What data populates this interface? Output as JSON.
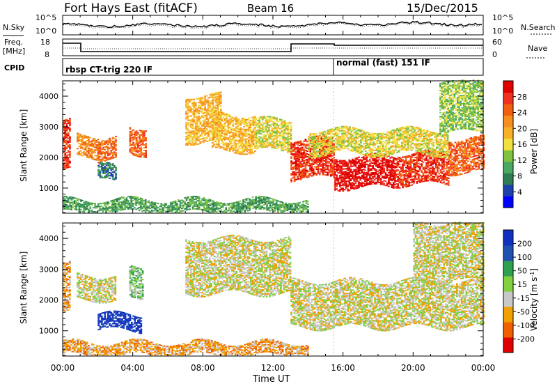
{
  "header": {
    "station": "Fort Hays East (fitACF)",
    "beam": "Beam 16",
    "date": "15/Dec/2015"
  },
  "left_labels": {
    "nsky": "N.Sky",
    "freq": "Freq.",
    "freq_unit": "[MHz]",
    "cpid": "CPID"
  },
  "right_labels": {
    "nsearch": "N.Search",
    "nave": "Nave"
  },
  "top_panel": {
    "left_ticks": [
      "10^5",
      "10^0"
    ],
    "right_ticks": [
      "10^5",
      "10^0"
    ]
  },
  "freq_panel": {
    "left_ticks": [
      "18",
      "8"
    ],
    "right_ticks": [
      "60",
      "0"
    ]
  },
  "cpid_panel": {
    "mode1": "rbsp CT-trig 220 IF",
    "mode2": "normal (fast) 151 IF"
  },
  "colors": {
    "power": [
      "#0000ff",
      "#1e3fae",
      "#2e7d52",
      "#4aa860",
      "#7fc241",
      "#f0e040",
      "#f9b028",
      "#f59020",
      "#f06010",
      "#f03020",
      "#e00000"
    ],
    "velocity": [
      "#e00000",
      "#f06000",
      "#f0a000",
      "#c8c8c8",
      "#80d040",
      "#30a050",
      "#2050b0",
      "#1030c0"
    ]
  },
  "chart_data": [
    {
      "type": "heatmap",
      "title": "",
      "xlabel": "Time UT",
      "ylabel": "Slant Range [km]",
      "colorbar_label": "Power [dB]",
      "colorbar_ticks": [
        "28",
        "24",
        "20",
        "16",
        "12",
        "8",
        "4"
      ],
      "x_ticks": [
        "00:00",
        "04:00",
        "08:00",
        "12:00",
        "16:00",
        "20:00",
        "00:00"
      ],
      "y_ticks": [
        "4000",
        "3000",
        "2000",
        "1000"
      ],
      "xlim_hours": [
        0,
        24
      ],
      "ylim_km": [
        180,
        4500
      ],
      "bands": [
        {
          "t0": 0.0,
          "t1": 0.4,
          "r_lo": 1600,
          "r_hi": 3200,
          "level": 9
        },
        {
          "t0": 0.8,
          "t1": 2.0,
          "r_lo": 2000,
          "r_hi": 2700,
          "level": 7
        },
        {
          "t0": 2.0,
          "t1": 3.0,
          "r_lo": 1900,
          "r_hi": 2600,
          "level": 8
        },
        {
          "t0": 3.8,
          "t1": 4.7,
          "r_lo": 2100,
          "r_hi": 3000,
          "level": 8
        },
        {
          "t0": 2.0,
          "t1": 3.0,
          "r_lo": 1200,
          "r_hi": 1700,
          "level": 2
        },
        {
          "t0": 7.0,
          "t1": 9.0,
          "r_lo": 2500,
          "r_hi": 4000,
          "level": 6
        },
        {
          "t0": 8.5,
          "t1": 11.0,
          "r_lo": 2200,
          "r_hi": 3400,
          "level": 6
        },
        {
          "t0": 11.0,
          "t1": 13.0,
          "r_lo": 2200,
          "r_hi": 3200,
          "level": 5
        },
        {
          "t0": 13.0,
          "t1": 15.5,
          "r_lo": 1300,
          "r_hi": 2600,
          "level": 9
        },
        {
          "t0": 15.5,
          "t1": 19.0,
          "r_lo": 1000,
          "r_hi": 2000,
          "level": 10
        },
        {
          "t0": 19.0,
          "t1": 22.0,
          "r_lo": 1100,
          "r_hi": 2100,
          "level": 9
        },
        {
          "t0": 22.0,
          "t1": 24.0,
          "r_lo": 1500,
          "r_hi": 2600,
          "level": 8
        },
        {
          "t0": 14.0,
          "t1": 22.0,
          "r_lo": 2100,
          "r_hi": 2900,
          "level": 5
        },
        {
          "t0": 21.5,
          "t1": 24.0,
          "r_lo": 2800,
          "r_hi": 4500,
          "level": 4
        },
        {
          "t0": 0.0,
          "t1": 14.0,
          "r_lo": 180,
          "r_hi": 600,
          "level": 3
        }
      ]
    },
    {
      "type": "heatmap",
      "title": "",
      "xlabel": "Time UT",
      "ylabel": "Slant Range [km]",
      "colorbar_label": "Velocity [m s^-1]",
      "colorbar_ticks": [
        "200",
        "100",
        "50",
        "15",
        "-15",
        "-50",
        "-100",
        "-200"
      ],
      "x_ticks": [
        "00:00",
        "04:00",
        "08:00",
        "12:00",
        "16:00",
        "20:00",
        "00:00"
      ],
      "y_ticks": [
        "4000",
        "3000",
        "2000",
        "1000"
      ],
      "xlim_hours": [
        0,
        24
      ],
      "ylim_km": [
        180,
        4500
      ],
      "bands": [
        {
          "t0": 0.0,
          "t1": 0.4,
          "r_lo": 1600,
          "r_hi": 3200,
          "level": 2
        },
        {
          "t0": 0.8,
          "t1": 3.0,
          "r_lo": 2000,
          "r_hi": 2800,
          "level": 3
        },
        {
          "t0": 3.8,
          "t1": 4.6,
          "r_lo": 2000,
          "r_hi": 3000,
          "level": 4
        },
        {
          "t0": 2.0,
          "t1": 4.5,
          "r_lo": 1000,
          "r_hi": 1500,
          "level": 7
        },
        {
          "t0": 7.0,
          "t1": 13.0,
          "r_lo": 2200,
          "r_hi": 4000,
          "level": 3
        },
        {
          "t0": 13.0,
          "t1": 24.0,
          "r_lo": 1100,
          "r_hi": 2600,
          "level": 3
        },
        {
          "t0": 20.0,
          "t1": 24.0,
          "r_lo": 2600,
          "r_hi": 4500,
          "level": 3
        },
        {
          "t0": 0.0,
          "t1": 14.0,
          "r_lo": 180,
          "r_hi": 600,
          "level": 2
        }
      ]
    }
  ]
}
